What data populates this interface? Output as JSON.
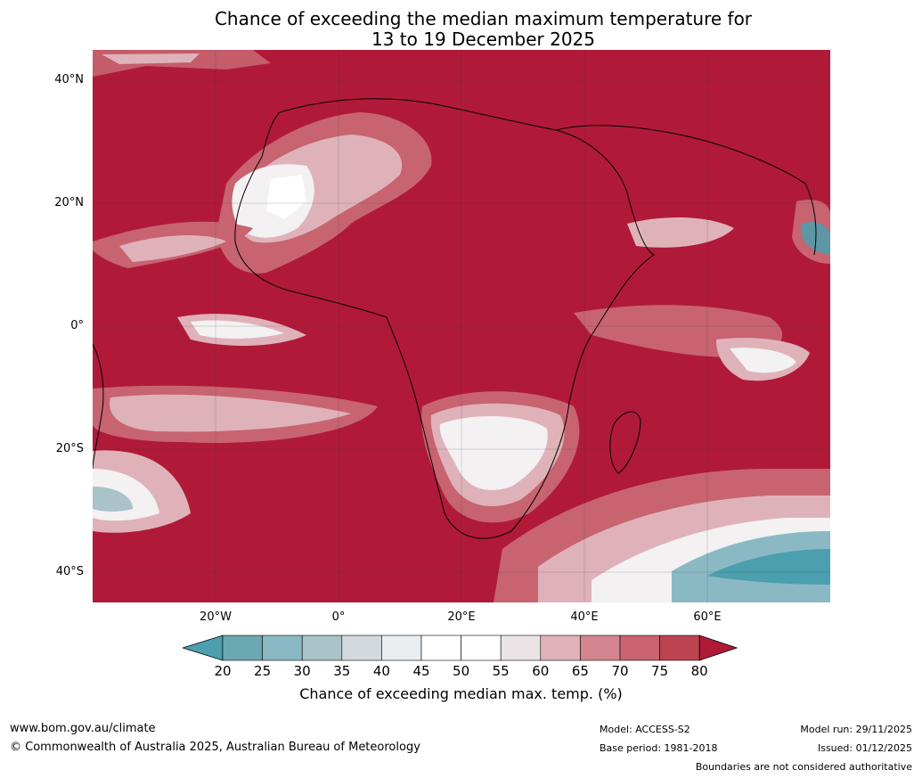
{
  "title": {
    "line1": "Chance of exceeding the median maximum temperature for",
    "line2": "13 to 19 December 2025"
  },
  "lat_labels": [
    "40°N",
    "20°N",
    "0°",
    "20°S",
    "40°S"
  ],
  "lon_labels": [
    "20°W",
    "0°",
    "20°E",
    "40°E",
    "60°E"
  ],
  "colorbar": {
    "ticks": [
      "20",
      "25",
      "30",
      "35",
      "40",
      "45",
      "50",
      "55",
      "60",
      "65",
      "70",
      "75",
      "80"
    ],
    "colors": [
      "#4b9fae",
      "#6ca8b2",
      "#8ab9c4",
      "#a9c3c8",
      "#d4d9dd",
      "#eaeef0",
      "#ffffff",
      "#ffffff",
      "#ebe4e6",
      "#dfb2ba",
      "#d3868f",
      "#c76470",
      "#bd4351",
      "#b01a38"
    ],
    "label": "Chance of exceeding median max. temp. (%)"
  },
  "footer": {
    "website": "www.bom.gov.au/climate",
    "copyright": "© Commonwealth of Australia 2025, Australian Bureau of Meteorology",
    "model": "Model: ACCESS-S2",
    "base_period": "Base period: 1981-2018",
    "model_run": "Model run: 29/11/2025",
    "issued": "Issued: 01/12/2025",
    "disclaimer": "Boundaries are not considered authoritative"
  },
  "map_colors": {
    "high": "#b01a38",
    "mid_high": "#c76470",
    "mid": "#dfb2ba",
    "near_median": "#f3f1f2",
    "low": "#4b9fae",
    "low_mid": "#a9c3c8"
  }
}
